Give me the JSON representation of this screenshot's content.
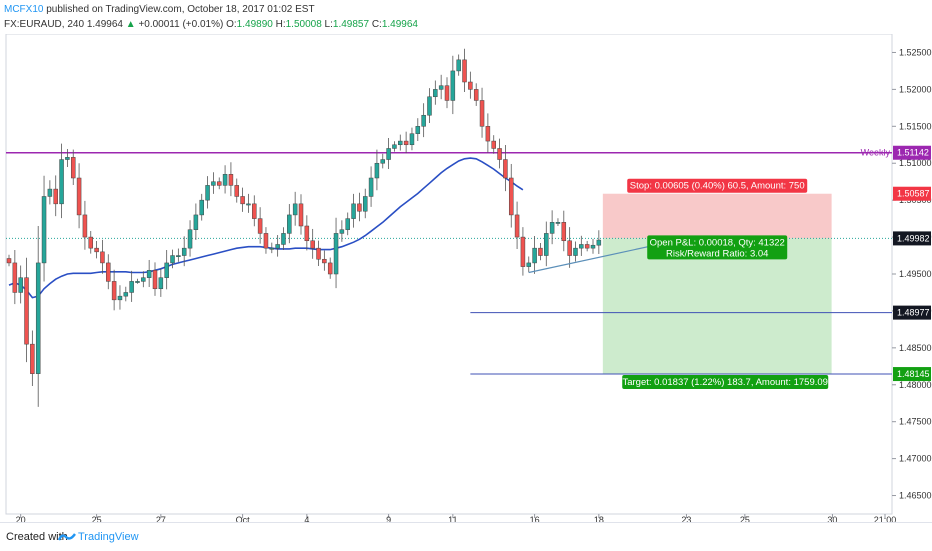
{
  "header": {
    "author": "MCFX10",
    "published": "published on TradingView.com, October 18, 2017 01:02 EST",
    "symbol": "FX:EURAUD, 240",
    "last": "1.49964",
    "change_arrow": "▲",
    "change": "+0.00011 (+0.01%)",
    "o_label": "O:",
    "o": "1.49890",
    "h_label": "H:",
    "h": "1.50008",
    "l_label": "L:",
    "l": "1.49857",
    "c_label": "C:",
    "c": "1.49964"
  },
  "footer": {
    "created_with": "Created with",
    "brand": "TradingView"
  },
  "colors": {
    "up": "#26a69a",
    "down": "#ef5350",
    "ma": "#2a4fc4",
    "weekly": "#9c27b0",
    "target_line": "#3f51b5",
    "stop_zone": "#f8c9c9",
    "target_zone": "#cdebcd",
    "label_red": "#f23645",
    "label_green": "#12a012",
    "label_dark": "#131722"
  },
  "chart_data": {
    "type": "candlestick",
    "ylim": [
      1.4625,
      1.5275
    ],
    "price_ticks": [
      "1.52500",
      "1.52000",
      "1.51500",
      "1.51000",
      "1.50500",
      "1.50000",
      "1.49500",
      "1.49000",
      "1.48500",
      "1.48000",
      "1.47500",
      "1.47000",
      "1.46500"
    ],
    "date_ticks": [
      {
        "label": "20",
        "idx": 2
      },
      {
        "label": "25",
        "idx": 15
      },
      {
        "label": "27",
        "idx": 26
      },
      {
        "label": "Oct",
        "idx": 40
      },
      {
        "label": "4",
        "idx": 51
      },
      {
        "label": "9",
        "idx": 65
      },
      {
        "label": "11",
        "idx": 76
      },
      {
        "label": "16",
        "idx": 90
      },
      {
        "label": "18",
        "idx": 101
      },
      {
        "label": "23",
        "idx": 116
      },
      {
        "label": "25",
        "idx": 126
      },
      {
        "label": "30",
        "idx": 141
      },
      {
        "label": "21:00",
        "idx": 150
      }
    ],
    "closes": [
      1.4965,
      1.4925,
      1.4945,
      1.4855,
      1.4815,
      1.4965,
      1.5055,
      1.5065,
      1.5045,
      1.5105,
      1.5108,
      1.508,
      1.503,
      1.5,
      1.4985,
      1.498,
      1.4965,
      1.494,
      1.4915,
      1.492,
      1.4925,
      1.494,
      1.494,
      1.4945,
      1.4955,
      1.493,
      1.4945,
      1.4965,
      1.4975,
      1.4975,
      1.4985,
      1.501,
      1.503,
      1.505,
      1.507,
      1.5075,
      1.507,
      1.5085,
      1.507,
      1.5055,
      1.5045,
      1.5045,
      1.5025,
      1.5005,
      1.4985,
      1.4985,
      1.499,
      1.5005,
      1.503,
      1.5045,
      1.5015,
      1.4995,
      1.4985,
      1.497,
      1.4965,
      1.495,
      1.5005,
      1.501,
      1.5025,
      1.5045,
      1.5035,
      1.5055,
      1.508,
      1.51,
      1.5105,
      1.512,
      1.5125,
      1.513,
      1.5125,
      1.514,
      1.515,
      1.5165,
      1.519,
      1.52,
      1.5205,
      1.5185,
      1.5225,
      1.524,
      1.521,
      1.52,
      1.5185,
      1.515,
      1.513,
      1.512,
      1.5105,
      1.508,
      1.503,
      1.5,
      1.496,
      1.4965,
      1.4985,
      1.4975,
      1.5005,
      1.502,
      1.502,
      1.4995,
      1.4975,
      1.4985,
      1.499,
      1.4985,
      1.4989,
      1.4996
    ],
    "ma": {
      "name": "",
      "start_idx": 0,
      "values": [
        1.4935,
        1.4938,
        1.4935,
        1.4928,
        1.4918,
        1.492,
        1.493,
        1.4937,
        1.4943,
        1.4947,
        1.495,
        1.4951,
        1.4951,
        1.4951,
        1.4951,
        1.4952,
        1.4953,
        1.4953,
        1.4953,
        1.4953,
        1.4953,
        1.4952,
        1.4952,
        1.4952,
        1.4953,
        1.4955,
        1.4957,
        1.496,
        1.4963,
        1.4965,
        1.4967,
        1.4969,
        1.4971,
        1.4973,
        1.4975,
        1.4977,
        1.4979,
        1.4981,
        1.4983,
        1.4985,
        1.4986,
        1.4987,
        1.4987,
        1.4987,
        1.4986,
        1.4985,
        1.4984,
        1.4984,
        1.4984,
        1.4985,
        1.4985,
        1.4985,
        1.4984,
        1.4983,
        1.4983,
        1.4983,
        1.4985,
        1.4987,
        1.499,
        1.4993,
        1.4997,
        1.5002,
        1.5008,
        1.5014,
        1.502,
        1.5027,
        1.5034,
        1.5041,
        1.5047,
        1.5053,
        1.5059,
        1.5066,
        1.5073,
        1.508,
        1.5087,
        1.5093,
        1.5098,
        1.5103,
        1.5106,
        1.5107,
        1.5106,
        1.5102,
        1.5097,
        1.5092,
        1.5086,
        1.508,
        1.5075,
        1.5069,
        1.5064
      ]
    },
    "weekly_level": {
      "label": "Weekly",
      "value": 1.51142,
      "value_label": "1.51142"
    },
    "current_price": {
      "value": 1.49982,
      "value_label": "1.49982"
    },
    "stop": {
      "value": 1.50587,
      "value_label": "1.50587",
      "text": "Stop: 0.00605 (0.40%) 60.5, Amount: 750"
    },
    "level_2": {
      "value": 1.48977,
      "value_label": "1.48977"
    },
    "target": {
      "value": 1.48145,
      "value_label": "1.48145",
      "text": "Target: 0.01837 (1.22%) 183.7, Amount: 1759.09"
    },
    "position": {
      "entry": 1.49982,
      "start_idx": 101,
      "end_idx": 140,
      "text1": "Open P&L: 0.00018, Qty: 41322",
      "text2": "Risk/Reward Ratio: 3.04"
    },
    "trendline": {
      "from": {
        "idx": 89,
        "price": 1.4952
      },
      "to": {
        "idx": 116,
        "price": 1.49982
      }
    }
  }
}
